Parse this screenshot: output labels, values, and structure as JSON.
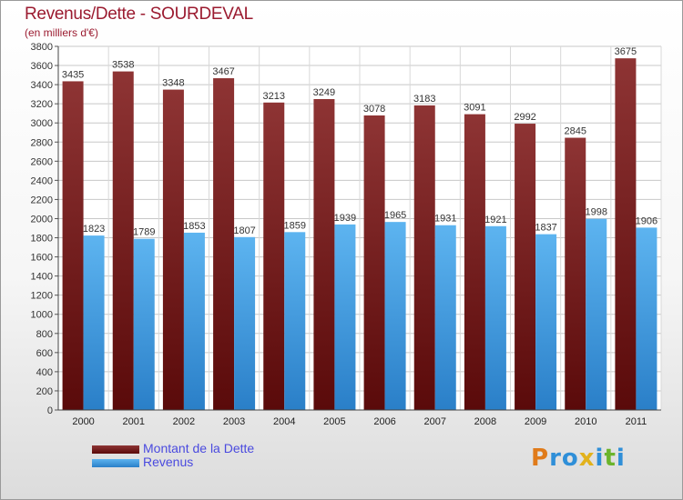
{
  "chart_data": {
    "type": "bar",
    "title": "Revenus/Dette - SOURDEVAL",
    "subtitle": "(en milliers d'€)",
    "categories": [
      "2000",
      "2001",
      "2002",
      "2003",
      "2004",
      "2005",
      "2006",
      "2007",
      "2008",
      "2009",
      "2010",
      "2011"
    ],
    "series": [
      {
        "name": "Montant de la Dette",
        "color": "#7a1a1a",
        "values": [
          3435,
          3538,
          3348,
          3467,
          3213,
          3249,
          3078,
          3183,
          3091,
          2992,
          2845,
          3675
        ]
      },
      {
        "name": "Revenus",
        "color": "#4aa3e6",
        "values": [
          1823,
          1789,
          1853,
          1807,
          1859,
          1939,
          1965,
          1931,
          1921,
          1837,
          1998,
          1906
        ]
      }
    ],
    "ylim": [
      0,
      3800
    ],
    "ytick_step": 200,
    "grid": true,
    "legend_position": "bottom-left"
  },
  "logo": {
    "letters": [
      {
        "char": "P",
        "color": "#e07b1a"
      },
      {
        "char": "r",
        "color": "#2f8fd8"
      },
      {
        "char": "o",
        "color": "#2f8fd8"
      },
      {
        "char": "x",
        "color": "#e2b21c"
      },
      {
        "char": "i",
        "color": "#2f8fd8"
      },
      {
        "char": "t",
        "color": "#6bb42c"
      },
      {
        "char": "i",
        "color": "#2f8fd8"
      }
    ]
  }
}
